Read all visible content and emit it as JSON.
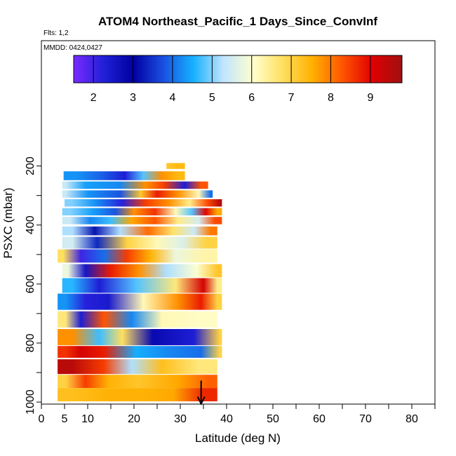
{
  "chart_data": {
    "type": "heatmap",
    "title": "ATOM4 Northeast_Pacific_1 Days_Since_ConvInf",
    "flights_note": "Flts: 1,2",
    "dates_note": "MMDD: 0424,0427",
    "xlabel": "Latitude (deg N)",
    "ylabel": "PSXC (mbar)",
    "xlim": [
      0,
      85
    ],
    "ylim": [
      1000,
      0
    ],
    "x_ticks": [
      0,
      5,
      10,
      20,
      30,
      40,
      50,
      60,
      70,
      80
    ],
    "y_ticks": [
      200,
      400,
      600,
      800,
      1000
    ],
    "colorbar": {
      "min": 1.5,
      "max": 9.8,
      "ticks": [
        2,
        3,
        4,
        5,
        6,
        7,
        8,
        9
      ],
      "colors": [
        "#7a2bff",
        "#2020d8",
        "#0000a0",
        "#1a4fe0",
        "#15b0ff",
        "#bfe4ff",
        "#ffffd0",
        "#ffe060",
        "#ffb000",
        "#ff5500",
        "#e00000",
        "#a01010"
      ]
    },
    "rows": [
      {
        "p": 200,
        "h": 20,
        "segs": [
          [
            27,
            28,
            7.2
          ],
          [
            28,
            31,
            7.4
          ]
        ]
      },
      {
        "p": 233,
        "h": 30,
        "segs": [
          [
            4.8,
            10,
            4.3
          ],
          [
            10,
            16,
            3.9
          ],
          [
            16,
            20,
            2.3
          ],
          [
            20,
            24,
            4.8
          ],
          [
            24,
            28,
            7.8
          ],
          [
            28,
            31,
            7.4
          ]
        ]
      },
      {
        "p": 265,
        "h": 25,
        "segs": [
          [
            4.5,
            6,
            5.4
          ],
          [
            6,
            13,
            4.4
          ],
          [
            13,
            21,
            4.2
          ],
          [
            21,
            24,
            7.8
          ],
          [
            24,
            29,
            8.5
          ],
          [
            29,
            33,
            2.3
          ],
          [
            33,
            36,
            8.3
          ]
        ]
      },
      {
        "p": 295,
        "h": 25,
        "segs": [
          [
            4.5,
            6,
            5.4
          ],
          [
            6,
            14,
            4.3
          ],
          [
            14,
            20,
            3.8
          ],
          [
            20,
            23,
            7.2
          ],
          [
            23,
            27,
            8.8
          ],
          [
            27,
            32,
            7.8
          ],
          [
            32,
            36,
            6.2
          ],
          [
            36,
            37,
            4.0
          ]
        ]
      },
      {
        "p": 325,
        "h": 25,
        "segs": [
          [
            5,
            8,
            5.0
          ],
          [
            8,
            15,
            4.3
          ],
          [
            15,
            20,
            2.2
          ],
          [
            20,
            25,
            8.5
          ],
          [
            25,
            30,
            7.8
          ],
          [
            30,
            34,
            6.5
          ],
          [
            34,
            38,
            8.4
          ],
          [
            38,
            39,
            9.5
          ]
        ]
      },
      {
        "p": 355,
        "h": 25,
        "segs": [
          [
            4.5,
            8,
            5.0
          ],
          [
            8,
            14,
            4.4
          ],
          [
            14,
            18,
            3.8
          ],
          [
            18,
            22,
            7.8
          ],
          [
            22,
            27,
            8.6
          ],
          [
            27,
            31,
            6.2
          ],
          [
            31,
            34,
            4.8
          ],
          [
            34,
            37,
            9.0
          ],
          [
            37,
            39,
            7.6
          ]
        ]
      },
      {
        "p": 385,
        "h": 25,
        "segs": [
          [
            4.5,
            8,
            5.4
          ],
          [
            8,
            13,
            4.2
          ],
          [
            13,
            17,
            4.7
          ],
          [
            17,
            22,
            7.6
          ],
          [
            22,
            27,
            8.3
          ],
          [
            27,
            32,
            6.5
          ],
          [
            32,
            36,
            5.5
          ],
          [
            36,
            39,
            8.4
          ]
        ]
      },
      {
        "p": 420,
        "h": 30,
        "segs": [
          [
            4.5,
            9,
            5.2
          ],
          [
            9,
            14,
            3.2
          ],
          [
            14,
            20,
            5.2
          ],
          [
            20,
            26,
            8.1
          ],
          [
            26,
            31,
            6.7
          ],
          [
            31,
            35,
            5.4
          ],
          [
            35,
            38,
            8.0
          ]
        ]
      },
      {
        "p": 460,
        "h": 40,
        "segs": [
          [
            4.5,
            9,
            5.5
          ],
          [
            9,
            15,
            3.4
          ],
          [
            15,
            22,
            7.0
          ],
          [
            22,
            28,
            6.2
          ],
          [
            28,
            33,
            5.6
          ],
          [
            33,
            38,
            7.0
          ]
        ]
      },
      {
        "p": 505,
        "h": 45,
        "segs": [
          [
            3.5,
            6,
            6.8
          ],
          [
            6,
            11,
            2.0
          ],
          [
            11,
            16,
            4.0
          ],
          [
            16,
            21,
            8.5
          ],
          [
            21,
            26,
            7.5
          ],
          [
            26,
            32,
            5.8
          ],
          [
            32,
            38,
            6.3
          ]
        ]
      },
      {
        "p": 555,
        "h": 45,
        "segs": [
          [
            4.5,
            7,
            5.8
          ],
          [
            7,
            12,
            2.5
          ],
          [
            12,
            18,
            8.8
          ],
          [
            18,
            24,
            7.8
          ],
          [
            24,
            30,
            5.2
          ],
          [
            30,
            37,
            6.0
          ],
          [
            37,
            39,
            7.2
          ]
        ]
      },
      {
        "p": 605,
        "h": 50,
        "segs": [
          [
            4.5,
            9,
            4.6
          ],
          [
            9,
            16,
            2.3
          ],
          [
            16,
            25,
            4.8
          ],
          [
            25,
            33,
            6.6
          ],
          [
            33,
            37,
            9.2
          ],
          [
            37,
            39,
            6.5
          ]
        ]
      },
      {
        "p": 660,
        "h": 55,
        "segs": [
          [
            3.5,
            7,
            4.3
          ],
          [
            7,
            12,
            2.2
          ],
          [
            12,
            17,
            2.4
          ],
          [
            17,
            27,
            6.2
          ],
          [
            27,
            32,
            7.8
          ],
          [
            32,
            37,
            8.8
          ],
          [
            37,
            39,
            7.0
          ]
        ]
      },
      {
        "p": 720,
        "h": 55,
        "segs": [
          [
            3.5,
            7,
            6.6
          ],
          [
            7,
            10,
            2.3
          ],
          [
            10,
            17,
            8.3
          ],
          [
            17,
            22,
            4.2
          ],
          [
            22,
            30,
            6.2
          ],
          [
            30,
            38,
            6.1
          ]
        ]
      },
      {
        "p": 780,
        "h": 55,
        "segs": [
          [
            3.5,
            10,
            7.8
          ],
          [
            10,
            15,
            4.7
          ],
          [
            15,
            20,
            6.8
          ],
          [
            20,
            28,
            2.8
          ],
          [
            28,
            38,
            2.3
          ],
          [
            38,
            39,
            7.0
          ]
        ]
      },
      {
        "p": 830,
        "h": 40,
        "segs": [
          [
            3.5,
            7,
            8.6
          ],
          [
            7,
            10,
            9.2
          ],
          [
            10,
            17,
            8.8
          ],
          [
            17,
            24,
            4.5
          ],
          [
            24,
            31,
            4.2
          ],
          [
            31,
            38,
            4.0
          ],
          [
            38,
            39,
            7.0
          ]
        ]
      },
      {
        "p": 880,
        "h": 50,
        "segs": [
          [
            3.5,
            10,
            9.5
          ],
          [
            10,
            17,
            8.5
          ],
          [
            17,
            22,
            5.2
          ],
          [
            22,
            30,
            7.3
          ],
          [
            30,
            38,
            6.6
          ]
        ]
      },
      {
        "p": 930,
        "h": 45,
        "segs": [
          [
            3.5,
            7,
            7.0
          ],
          [
            7,
            12,
            8.5
          ],
          [
            12,
            17,
            7.5
          ],
          [
            17,
            25,
            7.2
          ],
          [
            25,
            34,
            7.6
          ],
          [
            34,
            38,
            8.2
          ]
        ]
      },
      {
        "p": 975,
        "h": 45,
        "segs": [
          [
            3.5,
            10,
            7.3
          ],
          [
            10,
            18,
            7.5
          ],
          [
            18,
            25,
            7.5
          ],
          [
            25,
            32,
            7.6
          ],
          [
            32,
            38,
            8.7
          ]
        ]
      }
    ],
    "marker": {
      "lat": 34.5,
      "p": 975,
      "shape": "arrow-down"
    }
  }
}
